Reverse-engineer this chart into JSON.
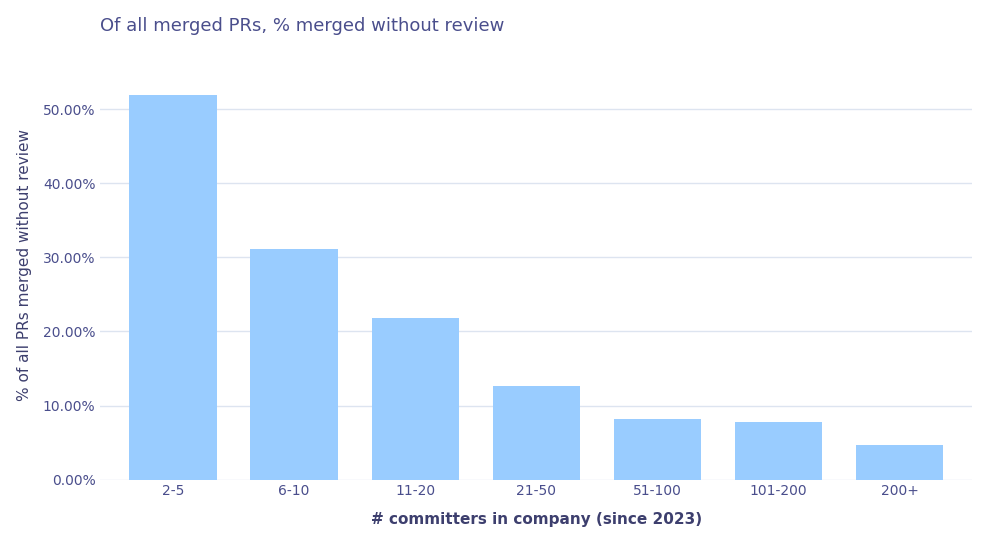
{
  "categories": [
    "2-5",
    "6-10",
    "11-20",
    "21-50",
    "51-100",
    "101-200",
    "200+"
  ],
  "values": [
    0.52,
    0.311,
    0.218,
    0.127,
    0.082,
    0.078,
    0.047
  ],
  "bar_color": "#99ccff",
  "title": "Of all merged PRs, % merged without review",
  "xlabel": "# committers in company (since 2023)",
  "ylabel": "% of all PRs merged without review",
  "title_color": "#4a4e8c",
  "axis_label_color": "#3d3f6e",
  "tick_label_color": "#4a4e8c",
  "background_color": "#ffffff",
  "plot_bg_color": "#ffffff",
  "grid_color": "#dde4f0",
  "ylim": [
    0,
    0.58
  ],
  "title_fontsize": 13,
  "axis_label_fontsize": 11,
  "tick_fontsize": 10,
  "bar_width": 0.72
}
